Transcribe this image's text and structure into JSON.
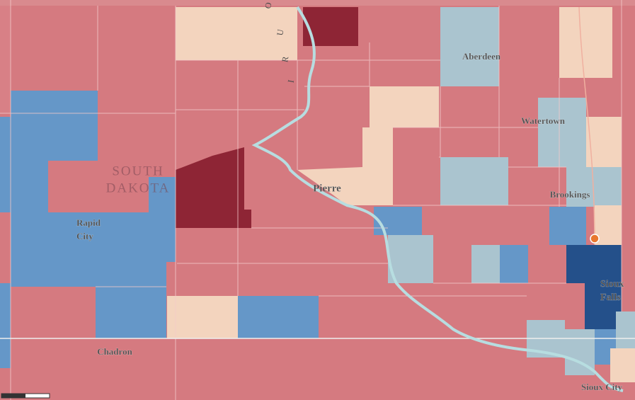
{
  "map": {
    "state_label": [
      "SOUTH",
      "DAKOTA"
    ],
    "river_label": [
      "O",
      "U",
      "R",
      "I"
    ],
    "cities": [
      [
        "Aberdeen"
      ],
      [
        "Watertown"
      ],
      [
        "Brookings"
      ],
      [
        "Pierre"
      ],
      [
        "Rapid",
        "City"
      ],
      [
        "Chadron"
      ],
      [
        "Sioux",
        "Falls"
      ],
      [
        "Sioux City"
      ]
    ]
  }
}
